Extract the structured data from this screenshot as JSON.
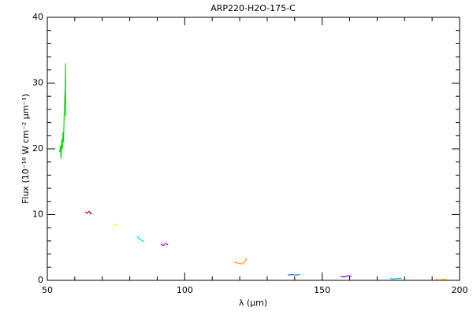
{
  "chart_data": {
    "type": "line",
    "title": "ARP220-H2O-175-C",
    "x_label": "λ (μm)",
    "y_label": "Flux (10⁻¹⁸ W cm⁻² μm⁻¹)",
    "xlim": [
      50,
      200
    ],
    "xticks": [
      50,
      100,
      150,
      200
    ],
    "ylim": [
      0,
      40
    ],
    "yticks": [
      0,
      10,
      20,
      30,
      40
    ],
    "grid": false,
    "series": [
      {
        "color": "#00dd00",
        "x": [
          54.5,
          54.8,
          55.0,
          55.3,
          55.5,
          55.7,
          55.9,
          56.1,
          56.3,
          56.5,
          56.6,
          56.7
        ],
        "values": [
          19.5,
          20.5,
          18.5,
          21.5,
          20.0,
          22.5,
          21.0,
          24.5,
          27.0,
          29.0,
          33.0,
          25.0
        ]
      },
      {
        "color": "#dd0000",
        "x": [
          63.8,
          64.5,
          65.2,
          65.8,
          66.1
        ],
        "values": [
          10.4,
          10.2,
          10.5,
          10.1,
          10.3
        ]
      },
      {
        "color": "#ffff00",
        "x": [
          73.8,
          74.5,
          75.2,
          75.8
        ],
        "values": [
          8.6,
          8.4,
          8.5,
          8.3
        ]
      },
      {
        "color": "#00dddd",
        "x": [
          82.7,
          83.5,
          84.3,
          85.3
        ],
        "values": [
          6.7,
          6.3,
          6.1,
          5.9
        ]
      },
      {
        "color": "#dd00dd",
        "x": [
          91.3,
          92.2,
          93.0,
          93.9
        ],
        "values": [
          5.5,
          5.3,
          5.6,
          5.4
        ]
      },
      {
        "color": "#ff9900",
        "x": [
          118.0,
          119.5,
          121.0,
          122.0,
          122.5
        ],
        "values": [
          2.8,
          2.6,
          2.5,
          2.9,
          3.4
        ]
      },
      {
        "color": "#0066ff",
        "x": [
          137.5,
          139.0,
          140.5,
          141.8
        ],
        "values": [
          0.8,
          0.9,
          0.8,
          0.9
        ]
      },
      {
        "color": "#9900cc",
        "x": [
          156.7,
          158.0,
          159.5,
          160.7
        ],
        "values": [
          0.6,
          0.5,
          0.7,
          0.6
        ]
      },
      {
        "color": "#00cccc",
        "x": [
          174.7,
          176.0,
          177.5,
          179.0
        ],
        "values": [
          0.3,
          0.2,
          0.3,
          0.3
        ]
      },
      {
        "color": "#ffcc00",
        "x": [
          191.4,
          192.8,
          194.2,
          195.4
        ],
        "values": [
          0.15,
          0.1,
          0.2,
          0.15
        ]
      }
    ]
  }
}
